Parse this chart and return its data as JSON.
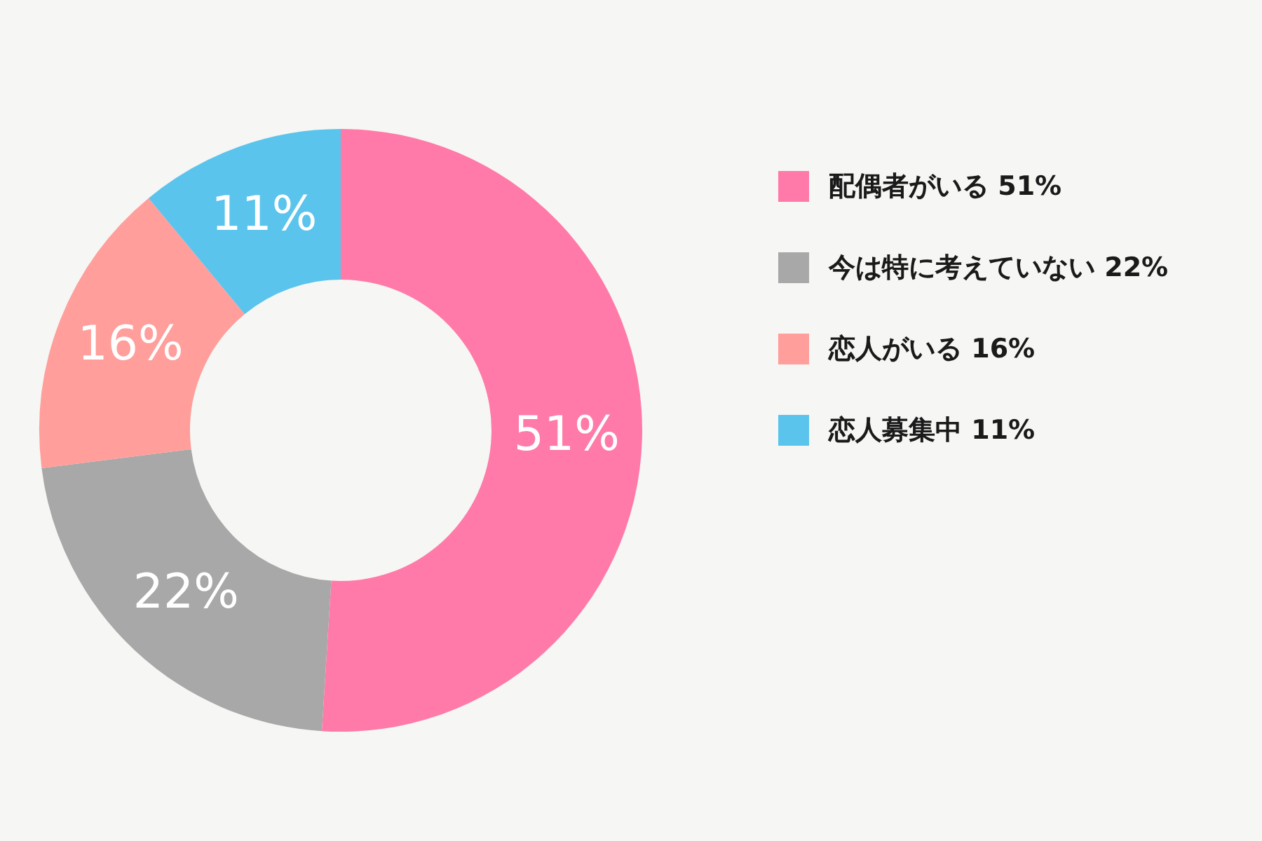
{
  "chart_data": {
    "type": "donut",
    "categories": [
      "配偶者がいる",
      "今は特に考えていない",
      "恋人がいる",
      "恋人募集中"
    ],
    "values": [
      51,
      22,
      16,
      11
    ],
    "colors": [
      "#ff7aa8",
      "#a8a8a8",
      "#ff9e9a",
      "#5bc4ec"
    ],
    "value_labels": [
      "51%",
      "22%",
      "16%",
      "11%"
    ],
    "legend": "right"
  }
}
